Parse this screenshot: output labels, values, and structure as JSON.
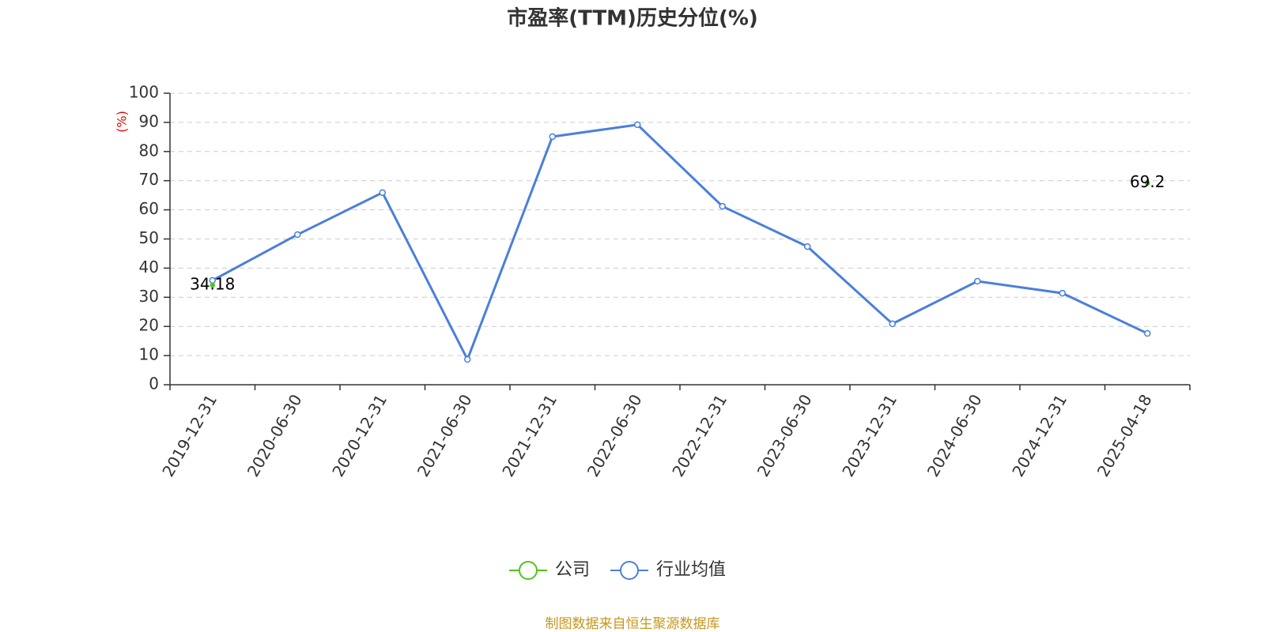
{
  "chart_data": {
    "type": "line",
    "title": "市盈率(TTM)历史分位(%)",
    "y_label": "(%)",
    "categories": [
      "2019-12-31",
      "2020-06-30",
      "2020-12-31",
      "2021-06-30",
      "2021-12-31",
      "2022-06-30",
      "2022-12-31",
      "2023-06-30",
      "2023-12-31",
      "2024-06-30",
      "2024-12-31",
      "2025-04-18"
    ],
    "series": [
      {
        "name": "公司",
        "color": "#52c41a",
        "show_labels": true,
        "values": [
          34.18,
          null,
          null,
          null,
          null,
          null,
          null,
          null,
          null,
          null,
          null,
          69.2
        ]
      },
      {
        "name": "行业均值",
        "color": "#4a7fdc",
        "values": [
          35.8,
          51.5,
          65.9,
          8.7,
          85.1,
          89.2,
          61.2,
          47.4,
          20.9,
          35.5,
          31.4,
          17.6
        ]
      }
    ],
    "ylim": [
      0,
      100
    ],
    "yticks": [
      0,
      10,
      20,
      30,
      40,
      50,
      60,
      70,
      80,
      90,
      100
    ],
    "grid": true,
    "source": "制图数据来自恒生聚源数据库"
  }
}
